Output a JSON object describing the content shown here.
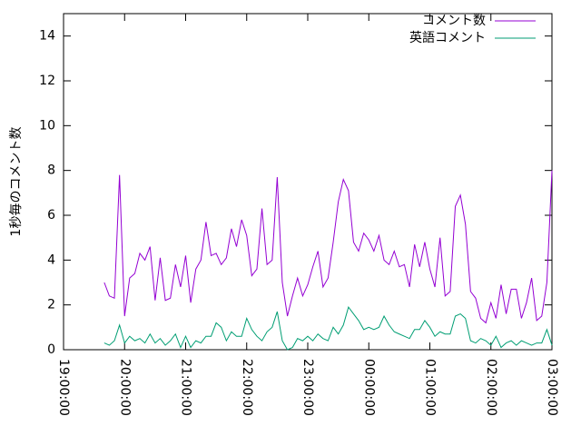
{
  "chart_data": {
    "type": "line",
    "ylabel": "1秒毎のコメント数",
    "xlim": [
      19,
      27
    ],
    "xticks": [
      {
        "value": 19,
        "label": "19:00:00"
      },
      {
        "value": 20,
        "label": "20:00:00"
      },
      {
        "value": 21,
        "label": "21:00:00"
      },
      {
        "value": 22,
        "label": "22:00:00"
      },
      {
        "value": 23,
        "label": "23:00:00"
      },
      {
        "value": 24,
        "label": "00:00:00"
      },
      {
        "value": 25,
        "label": "01:00:00"
      },
      {
        "value": 26,
        "label": "02:00:00"
      },
      {
        "value": 27,
        "label": "03:00:00"
      }
    ],
    "ylim": [
      0,
      15
    ],
    "yticks": [
      0,
      2,
      4,
      6,
      8,
      10,
      12,
      14
    ],
    "legend": "top-right",
    "x": [
      19.667,
      19.75,
      19.833,
      19.917,
      20,
      20.083,
      20.167,
      20.25,
      20.333,
      20.417,
      20.5,
      20.583,
      20.667,
      20.75,
      20.833,
      20.917,
      21,
      21.083,
      21.167,
      21.25,
      21.333,
      21.417,
      21.5,
      21.583,
      21.667,
      21.75,
      21.833,
      21.917,
      22,
      22.083,
      22.167,
      22.25,
      22.333,
      22.417,
      22.5,
      22.583,
      22.667,
      22.75,
      22.833,
      22.917,
      23,
      23.083,
      23.167,
      23.25,
      23.333,
      23.417,
      23.5,
      23.583,
      23.667,
      23.75,
      23.833,
      23.917,
      24,
      24.083,
      24.167,
      24.25,
      24.333,
      24.417,
      24.5,
      24.583,
      24.667,
      24.75,
      24.833,
      24.917,
      25,
      25.083,
      25.167,
      25.25,
      25.333,
      25.417,
      25.5,
      25.583,
      25.667,
      25.75,
      25.833,
      25.917,
      26,
      26.083,
      26.167,
      26.25,
      26.333,
      26.417,
      26.5,
      26.583,
      26.667,
      26.75,
      26.833,
      26.917,
      27
    ],
    "series": [
      {
        "name": "コメント数",
        "color": "#9400d3",
        "values": [
          3.0,
          2.4,
          2.3,
          7.8,
          1.5,
          3.2,
          3.4,
          4.3,
          4.0,
          4.6,
          2.2,
          4.1,
          2.2,
          2.3,
          3.8,
          2.8,
          4.2,
          2.1,
          3.6,
          4.0,
          5.7,
          4.2,
          4.3,
          3.8,
          4.1,
          5.4,
          4.6,
          5.8,
          5.1,
          3.3,
          3.6,
          6.3,
          3.8,
          4.0,
          7.7,
          3.0,
          1.5,
          2.4,
          3.2,
          2.4,
          2.9,
          3.7,
          4.4,
          2.8,
          3.2,
          4.8,
          6.6,
          7.6,
          7.1,
          4.8,
          4.4,
          5.2,
          4.9,
          4.4,
          5.1,
          4.0,
          3.8,
          4.4,
          3.7,
          3.8,
          2.8,
          4.7,
          3.7,
          4.8,
          3.6,
          2.8,
          5.0,
          2.4,
          2.6,
          6.4,
          6.9,
          5.6,
          2.6,
          2.3,
          1.4,
          1.2,
          2.1,
          1.4,
          2.9,
          1.6,
          2.7,
          2.7,
          1.4,
          2.1,
          3.2,
          1.3,
          1.5,
          3.0,
          8.0
        ]
      },
      {
        "name": "英語コメント",
        "color": "#009e73",
        "values": [
          0.3,
          0.2,
          0.4,
          1.1,
          0.3,
          0.6,
          0.4,
          0.5,
          0.3,
          0.7,
          0.3,
          0.5,
          0.2,
          0.4,
          0.7,
          0.1,
          0.6,
          0.1,
          0.4,
          0.3,
          0.6,
          0.6,
          1.2,
          1.0,
          0.4,
          0.8,
          0.6,
          0.6,
          1.4,
          0.9,
          0.6,
          0.4,
          0.8,
          1.0,
          1.7,
          0.4,
          0.0,
          0.1,
          0.5,
          0.4,
          0.6,
          0.4,
          0.7,
          0.5,
          0.4,
          1.0,
          0.7,
          1.1,
          1.9,
          1.6,
          1.3,
          0.9,
          1.0,
          0.9,
          1.0,
          1.5,
          1.1,
          0.8,
          0.7,
          0.6,
          0.5,
          0.9,
          0.9,
          1.3,
          1.0,
          0.6,
          0.8,
          0.7,
          0.7,
          1.5,
          1.6,
          1.4,
          0.4,
          0.3,
          0.5,
          0.4,
          0.2,
          0.6,
          0.1,
          0.3,
          0.4,
          0.2,
          0.4,
          0.3,
          0.2,
          0.3,
          0.3,
          0.9,
          0.2
        ]
      }
    ]
  }
}
